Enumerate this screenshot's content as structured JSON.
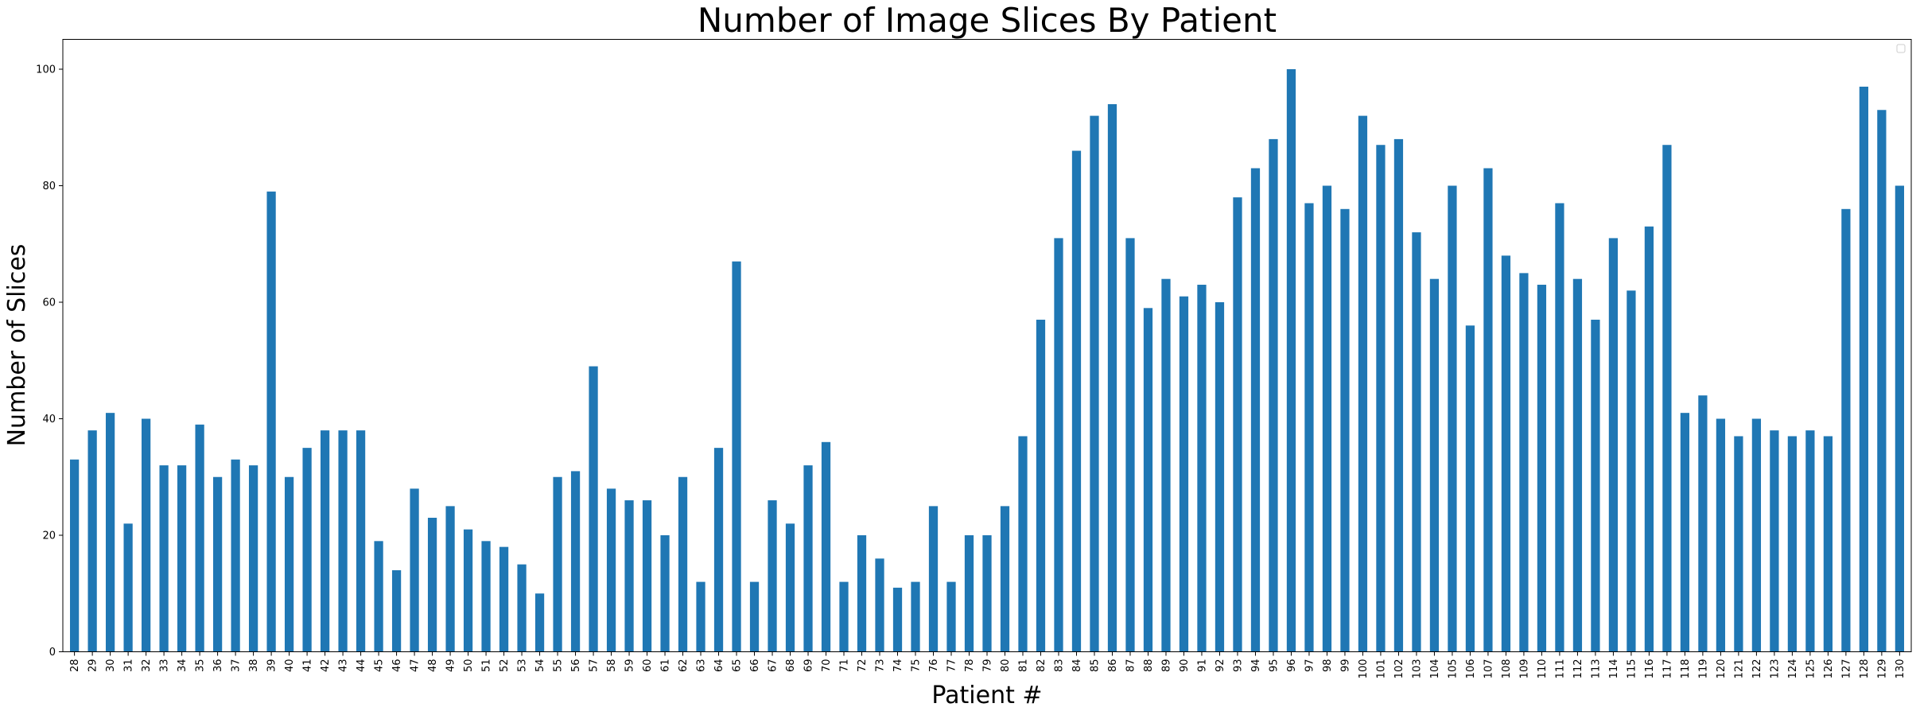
{
  "chart_data": {
    "type": "bar",
    "title": "Number of Image Slices By Patient",
    "xlabel": "Patient #",
    "ylabel": "Number of Slices",
    "categories": [
      "28",
      "29",
      "30",
      "31",
      "32",
      "33",
      "34",
      "35",
      "36",
      "37",
      "38",
      "39",
      "40",
      "41",
      "42",
      "43",
      "44",
      "45",
      "46",
      "47",
      "48",
      "49",
      "50",
      "51",
      "52",
      "53",
      "54",
      "55",
      "56",
      "57",
      "58",
      "59",
      "60",
      "61",
      "62",
      "63",
      "64",
      "65",
      "66",
      "67",
      "68",
      "69",
      "70",
      "71",
      "72",
      "73",
      "74",
      "75",
      "76",
      "77",
      "78",
      "79",
      "80",
      "81",
      "82",
      "83",
      "84",
      "85",
      "86",
      "87",
      "88",
      "89",
      "90",
      "91",
      "92",
      "93",
      "94",
      "95",
      "96",
      "97",
      "98",
      "99",
      "100",
      "101",
      "102",
      "103",
      "104",
      "105",
      "106",
      "107",
      "108",
      "109",
      "110",
      "111",
      "112",
      "113",
      "114",
      "115",
      "116",
      "117",
      "118",
      "119",
      "120",
      "121",
      "122",
      "123",
      "124",
      "125",
      "126",
      "127",
      "128",
      "129",
      "130"
    ],
    "values": [
      33,
      38,
      41,
      22,
      40,
      32,
      32,
      39,
      30,
      33,
      32,
      79,
      30,
      35,
      38,
      38,
      38,
      19,
      14,
      28,
      23,
      25,
      21,
      19,
      18,
      15,
      10,
      30,
      31,
      49,
      28,
      26,
      26,
      20,
      30,
      12,
      35,
      67,
      12,
      26,
      22,
      32,
      36,
      12,
      20,
      16,
      11,
      12,
      25,
      12,
      20,
      20,
      25,
      37,
      57,
      71,
      86,
      92,
      94,
      71,
      59,
      64,
      61,
      63,
      60,
      78,
      83,
      88,
      100,
      77,
      80,
      76,
      92,
      87,
      88,
      72,
      64,
      80,
      56,
      83,
      68,
      65,
      63,
      77,
      64,
      57,
      71,
      62,
      73,
      87,
      41,
      44,
      40,
      37,
      40,
      38,
      37,
      38,
      37,
      76,
      97,
      93,
      80
    ],
    "yticks": [
      "0",
      "20",
      "40",
      "60",
      "80",
      "100"
    ],
    "ylim": [
      0,
      105
    ],
    "bar_color": "#1f77b4",
    "grid": false,
    "legend": "top-right, empty"
  }
}
